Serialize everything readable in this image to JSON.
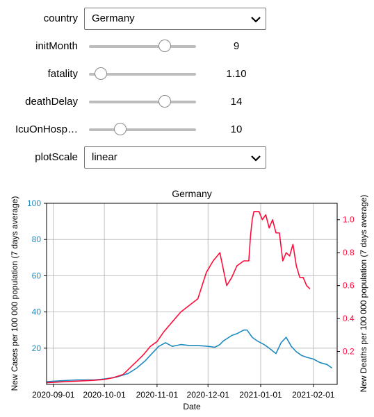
{
  "controls": {
    "country": {
      "label": "country",
      "value": "Germany"
    },
    "initMonth": {
      "label": "initMonth",
      "value": "9",
      "fraction": 0.71
    },
    "fatality": {
      "label": "fatality",
      "value": "1.10",
      "fraction": 0.11
    },
    "deathDelay": {
      "label": "deathDelay",
      "value": "14",
      "fraction": 0.71
    },
    "icuOnHosp": {
      "label": "IcuOnHosp…",
      "value": "10",
      "fraction": 0.29
    },
    "plotScale": {
      "label": "plotScale",
      "value": "linear"
    }
  },
  "colors": {
    "cases": "#1f8ac0",
    "deaths": "#ff0b3a",
    "grid": "#b0b0b0"
  },
  "chart_data": {
    "type": "line",
    "title": "Germany",
    "xlabel": "Date",
    "ylabel_left": "New Cases per 100 000 population (7 days average)",
    "ylabel_right": "New Deaths per 100 000 population (7 days average)",
    "xlim": [
      "2020-08-28",
      "2021-02-15"
    ],
    "ylim_left": [
      0,
      100
    ],
    "ylim_right": [
      0,
      1.1
    ],
    "x_ticks": [
      "2020-09-01",
      "2020-10-01",
      "2020-11-01",
      "2020-12-01",
      "2021-01-01",
      "2021-02-01"
    ],
    "y_ticks_left": [
      "20",
      "40",
      "60",
      "80",
      "100"
    ],
    "y_ticks_right": [
      "0.2",
      "0.4",
      "0.6",
      "0.8",
      "1.0"
    ],
    "grid": true,
    "series": [
      {
        "axis": "left",
        "x": [
          "2020-08-28",
          "2020-09-05",
          "2020-09-15",
          "2020-09-25",
          "2020-10-01",
          "2020-10-08",
          "2020-10-15",
          "2020-10-20",
          "2020-10-25",
          "2020-10-28",
          "2020-11-01",
          "2020-11-02",
          "2020-11-04",
          "2020-11-06",
          "2020-11-10",
          "2020-11-15",
          "2020-11-20",
          "2020-11-25",
          "2020-12-01",
          "2020-12-05",
          "2020-12-08",
          "2020-12-10",
          "2020-12-15",
          "2020-12-18",
          "2020-12-20",
          "2020-12-22",
          "2020-12-24",
          "2020-12-27",
          "2020-12-30",
          "2021-01-03",
          "2021-01-06",
          "2021-01-10",
          "2021-01-13",
          "2021-01-16",
          "2021-01-19",
          "2021-01-22",
          "2021-01-25",
          "2021-01-28",
          "2021-02-01",
          "2021-02-05",
          "2021-02-09",
          "2021-02-12"
        ],
        "values": [
          1.5,
          2,
          2.5,
          2.5,
          3,
          4,
          6,
          9,
          13,
          16,
          20,
          21,
          22,
          23,
          21,
          22,
          21.5,
          21.5,
          21,
          20.5,
          22,
          24,
          27,
          28,
          29,
          30,
          30,
          26,
          24,
          22,
          20,
          17,
          23,
          26,
          21,
          18,
          16,
          15,
          14,
          12,
          11,
          9
        ]
      },
      {
        "axis": "right",
        "x": [
          "2020-08-28",
          "2020-09-05",
          "2020-09-15",
          "2020-09-25",
          "2020-10-01",
          "2020-10-06",
          "2020-10-12",
          "2020-10-16",
          "2020-10-20",
          "2020-10-24",
          "2020-10-28",
          "2020-11-01",
          "2020-11-05",
          "2020-11-10",
          "2020-11-15",
          "2020-11-20",
          "2020-11-25",
          "2020-11-30",
          "2020-12-04",
          "2020-12-08",
          "2020-12-10",
          "2020-12-12",
          "2020-12-15",
          "2020-12-18",
          "2020-12-22",
          "2020-12-25",
          "2020-12-26",
          "2020-12-27",
          "2020-12-28",
          "2020-12-31",
          "2021-01-02",
          "2021-01-04",
          "2021-01-06",
          "2021-01-08",
          "2021-01-10",
          "2021-01-12",
          "2021-01-14",
          "2021-01-16",
          "2021-01-18",
          "2021-01-20",
          "2021-01-22",
          "2021-01-24",
          "2021-01-26",
          "2021-01-28",
          "2021-01-30"
        ],
        "values": [
          0.01,
          0.015,
          0.02,
          0.025,
          0.03,
          0.04,
          0.06,
          0.1,
          0.14,
          0.18,
          0.23,
          0.26,
          0.32,
          0.38,
          0.44,
          0.48,
          0.52,
          0.68,
          0.75,
          0.8,
          0.7,
          0.6,
          0.65,
          0.72,
          0.75,
          0.75,
          0.9,
          1.0,
          1.05,
          1.05,
          1.0,
          1.03,
          0.95,
          1.0,
          0.92,
          0.92,
          0.75,
          0.8,
          0.78,
          0.85,
          0.72,
          0.65,
          0.65,
          0.6,
          0.58
        ]
      }
    ]
  }
}
